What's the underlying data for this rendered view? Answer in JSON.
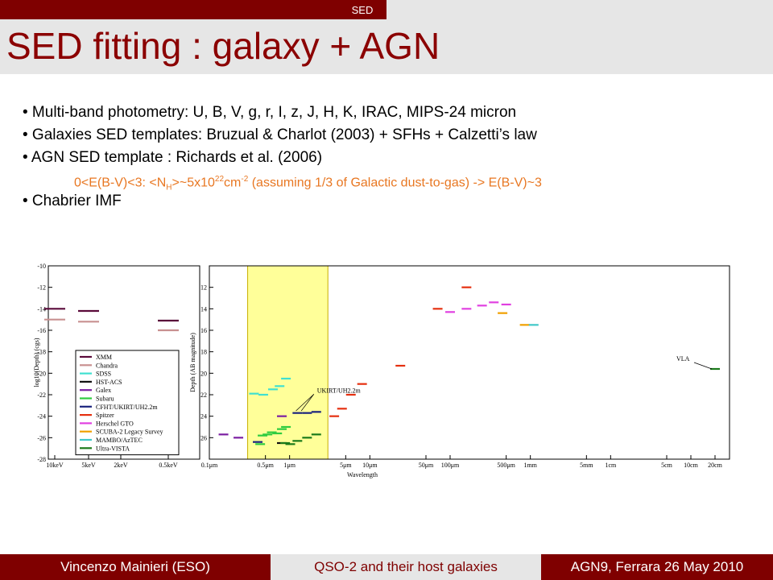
{
  "header": {
    "section": "SED",
    "title": "SED fitting : galaxy + AGN"
  },
  "bullets": [
    "• Multi-band photometry: U, B, V, g, r, I, z, J, H, K, IRAC, MIPS-24 micron",
    "• Galaxies SED templates: Bruzual & Charlot (2003) + SFHs + Calzetti’s law",
    "• AGN SED template : Richards et al. (2006)"
  ],
  "subline": {
    "p1": "0<E(B-V)<3: <N",
    "sub": "H",
    "p2": ">~5x10",
    "sup1": "22",
    "p3": "cm",
    "sup2": "-2",
    "p4": " (assuming 1/3 of Galactic dust-to-gas) -> E(B-V)~3"
  },
  "bullet_last": "• Chabrier IMF",
  "footer": {
    "left": "Vincenzo Mainieri (ESO)",
    "center": "QSO-2 and their host galaxies",
    "right": "AGN9, Ferrara 26 May 2010"
  },
  "colors": {
    "brand": "#7f0000",
    "title": "#8b0000",
    "bar_gray": "#e6e6e6",
    "subline": "#e87722",
    "highlight": "#ffff99"
  },
  "chart_data": {
    "type": "scatter",
    "left_axis": {
      "ylabel": "log10(Depth) (cgs)",
      "yticks": [
        "-10",
        "-12",
        "-14",
        "-16",
        "-18",
        "-20",
        "-22",
        "-24",
        "-26",
        "-28"
      ],
      "xticks": [
        "10keV",
        "5keV",
        "2keV",
        "0.5keV"
      ]
    },
    "right_axis": {
      "ylabel": "Depth (AB magnitude)",
      "yticks": [
        "12",
        "14",
        "16",
        "18",
        "20",
        "22",
        "24",
        "26"
      ],
      "xlabel": "Wavelength",
      "xticks": [
        "0.1μm",
        "0.5μm",
        "1μm",
        "5μm",
        "10μm",
        "50μm",
        "100μm",
        "500μm",
        "1mm",
        "5mm",
        "1cm",
        "5cm",
        "10cm",
        "20cm"
      ]
    },
    "legend": [
      "XMM",
      "Chandra",
      "SDSS",
      "HST-ACS",
      "Galex",
      "Subaru",
      "CFHT/UKIRT/UH2.2m",
      "Spitzer",
      "Herschel GTO",
      "SCUBA-2 Legacy Survey",
      "MAMBO/AzTEC",
      "Ultra-VISTA"
    ],
    "series_colors": [
      "#5a0a3a",
      "#c89090",
      "#40e0d0",
      "#111111",
      "#7b1fa2",
      "#2ecc40",
      "#1a237e",
      "#e53010",
      "#e040e0",
      "#f0a000",
      "#40c8c8",
      "#1a7a1a"
    ],
    "annotations": [
      "UKIRT/UH2.2m",
      "VLA"
    ],
    "xray": [
      {
        "series": "XMM",
        "x": "10keV",
        "y": -14.0
      },
      {
        "series": "XMM",
        "x": "5keV",
        "y": -14.2
      },
      {
        "series": "XMM",
        "x": "0.5keV",
        "y": -15.1
      },
      {
        "series": "Chandra",
        "x": "10keV",
        "y": -15.0
      },
      {
        "series": "Chandra",
        "x": "5keV",
        "y": -15.2
      },
      {
        "series": "Chandra",
        "x": "0.5keV",
        "y": -16.0
      }
    ],
    "optical_ir": [
      {
        "series": "Galex",
        "x": 0.15,
        "y": 25.7
      },
      {
        "series": "Galex",
        "x": 0.23,
        "y": 26.0
      },
      {
        "series": "Galex",
        "x": 0.8,
        "y": 24.0
      },
      {
        "series": "SDSS",
        "x": 0.36,
        "y": 21.9
      },
      {
        "series": "SDSS",
        "x": 0.47,
        "y": 22.0
      },
      {
        "series": "SDSS",
        "x": 0.62,
        "y": 21.5
      },
      {
        "series": "SDSS",
        "x": 0.75,
        "y": 21.2
      },
      {
        "series": "SDSS",
        "x": 0.9,
        "y": 20.5
      },
      {
        "series": "Subaru",
        "x": 0.43,
        "y": 26.6
      },
      {
        "series": "Subaru",
        "x": 0.46,
        "y": 25.8
      },
      {
        "series": "Subaru",
        "x": 0.53,
        "y": 25.7
      },
      {
        "series": "Subaru",
        "x": 0.6,
        "y": 25.5
      },
      {
        "series": "Subaru",
        "x": 0.7,
        "y": 25.6
      },
      {
        "series": "Subaru",
        "x": 0.8,
        "y": 25.2
      },
      {
        "series": "Subaru",
        "x": 0.9,
        "y": 25.0
      },
      {
        "series": "HST-ACS",
        "x": 0.8,
        "y": 26.5
      },
      {
        "series": "CFHT/UKIRT/UH2.2m",
        "x": 0.4,
        "y": 26.4
      },
      {
        "series": "CFHT/UKIRT/UH2.2m",
        "x": 1.25,
        "y": 23.7
      },
      {
        "series": "CFHT/UKIRT/UH2.2m",
        "x": 1.65,
        "y": 23.7
      },
      {
        "series": "CFHT/UKIRT/UH2.2m",
        "x": 2.15,
        "y": 23.6
      },
      {
        "series": "Ultra-VISTA",
        "x": 0.88,
        "y": 26.5
      },
      {
        "series": "Ultra-VISTA",
        "x": 1.02,
        "y": 26.6
      },
      {
        "series": "Ultra-VISTA",
        "x": 1.25,
        "y": 26.3
      },
      {
        "series": "Ultra-VISTA",
        "x": 1.65,
        "y": 26.0
      },
      {
        "series": "Ultra-VISTA",
        "x": 2.15,
        "y": 25.7
      },
      {
        "series": "Spitzer",
        "x": 3.6,
        "y": 24.0
      },
      {
        "series": "Spitzer",
        "x": 4.5,
        "y": 23.3
      },
      {
        "series": "Spitzer",
        "x": 5.8,
        "y": 22.0
      },
      {
        "series": "Spitzer",
        "x": 8.0,
        "y": 21.0
      },
      {
        "series": "Spitzer",
        "x": 24,
        "y": 19.3
      },
      {
        "series": "Spitzer",
        "x": 70,
        "y": 14.0
      },
      {
        "series": "Spitzer",
        "x": 160,
        "y": 12.0
      },
      {
        "series": "Herschel GTO",
        "x": 100,
        "y": 14.3
      },
      {
        "series": "Herschel GTO",
        "x": 160,
        "y": 14.0
      },
      {
        "series": "Herschel GTO",
        "x": 250,
        "y": 13.7
      },
      {
        "series": "Herschel GTO",
        "x": 350,
        "y": 13.4
      },
      {
        "series": "Herschel GTO",
        "x": 500,
        "y": 13.6
      },
      {
        "series": "SCUBA-2 Legacy Survey",
        "x": 450,
        "y": 14.4
      },
      {
        "series": "SCUBA-2 Legacy Survey",
        "x": 850,
        "y": 15.5
      },
      {
        "series": "MAMBO/AzTEC",
        "x": 1100,
        "y": 15.5
      },
      {
        "series": "Ultra-VISTA",
        "x": 200000,
        "y": 19.6
      }
    ],
    "highlight_range": [
      0.3,
      3.0
    ]
  }
}
